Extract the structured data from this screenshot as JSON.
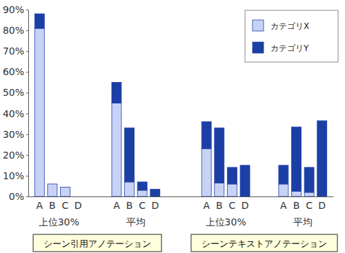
{
  "chart_data": {
    "type": "bar",
    "stacked": true,
    "legend": "top-right",
    "grid": false,
    "categories": [
      "A",
      "B",
      "C",
      "D",
      "A",
      "B",
      "C",
      "D",
      "A",
      "B",
      "C",
      "D",
      "A",
      "B",
      "C",
      "D"
    ],
    "groups": [
      {
        "name": "シーン引用アノテーション",
        "subgroups": [
          "上位30%",
          "平均"
        ]
      },
      {
        "name": "シーンテキストアノテーション",
        "subgroups": [
          "上位30%",
          "平均"
        ]
      }
    ],
    "series": [
      {
        "name": "カテゴリX",
        "color": "#c8d2f6",
        "values": [
          81,
          6,
          4.5,
          0,
          45,
          7,
          3,
          0,
          23,
          6.5,
          6,
          0,
          6,
          2.5,
          2,
          0
        ]
      },
      {
        "name": "カテゴリY",
        "color": "#1c3fa6",
        "values": [
          7,
          0,
          0,
          0,
          10,
          26,
          4,
          3.5,
          13,
          26.5,
          8,
          15,
          9,
          31,
          12,
          36.5
        ]
      }
    ],
    "ylim": [
      0,
      90
    ],
    "yticks": [
      {
        "value": 0,
        "label": "0%"
      },
      {
        "value": 10,
        "label": "10%"
      },
      {
        "value": 20,
        "label": "20%"
      },
      {
        "value": 30,
        "label": "30%"
      },
      {
        "value": 40,
        "label": "40%"
      },
      {
        "value": 50,
        "label": "50%"
      },
      {
        "value": 60,
        "label": "60%"
      },
      {
        "value": 70,
        "label": "70%"
      },
      {
        "value": 80,
        "label": "80%"
      },
      {
        "value": 90,
        "label": "90%"
      }
    ]
  }
}
